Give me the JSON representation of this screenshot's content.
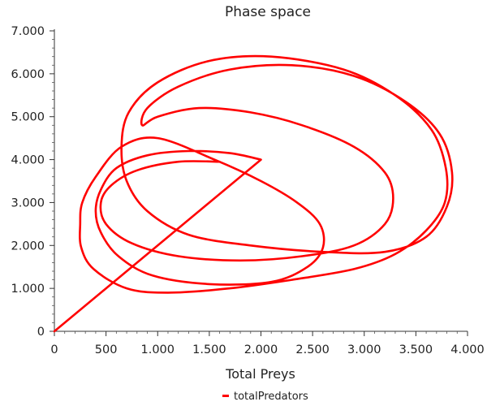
{
  "chart_data": {
    "type": "line",
    "title": "Phase space",
    "xlabel": "Total Preys",
    "ylabel": "",
    "xlim": [
      0,
      4000
    ],
    "ylim": [
      0,
      7000
    ],
    "x_ticks": [
      "0",
      "500",
      "1.000",
      "1.500",
      "2.000",
      "2.500",
      "3.000",
      "3.500",
      "4.000"
    ],
    "y_ticks": [
      "0",
      "1.000",
      "2.000",
      "3.000",
      "4.000",
      "5.000",
      "6.000",
      "7.000"
    ],
    "grid": false,
    "legend_position": "bottom-center",
    "series": [
      {
        "name": "totalPredators",
        "color": "#ff0000",
        "points": [
          [
            0,
            0
          ],
          [
            2000,
            4000
          ],
          [
            1700,
            4150
          ],
          [
            1300,
            4200
          ],
          [
            900,
            4100
          ],
          [
            600,
            3800
          ],
          [
            450,
            3300
          ],
          [
            400,
            2800
          ],
          [
            450,
            2300
          ],
          [
            620,
            1750
          ],
          [
            950,
            1300
          ],
          [
            1500,
            1100
          ],
          [
            2100,
            1150
          ],
          [
            2450,
            1500
          ],
          [
            2600,
            1950
          ],
          [
            2570,
            2500
          ],
          [
            2350,
            3000
          ],
          [
            2000,
            3500
          ],
          [
            1550,
            4000
          ],
          [
            1000,
            4500
          ],
          [
            650,
            4300
          ],
          [
            400,
            3600
          ],
          [
            270,
            3000
          ],
          [
            250,
            2500
          ],
          [
            260,
            1950
          ],
          [
            380,
            1450
          ],
          [
            700,
            1000
          ],
          [
            1100,
            900
          ],
          [
            1700,
            1000
          ],
          [
            2300,
            1200
          ],
          [
            2900,
            1450
          ],
          [
            3300,
            1800
          ],
          [
            3600,
            2350
          ],
          [
            3780,
            3000
          ],
          [
            3790,
            3800
          ],
          [
            3650,
            4700
          ],
          [
            3300,
            5500
          ],
          [
            2800,
            6100
          ],
          [
            2100,
            6400
          ],
          [
            1500,
            6300
          ],
          [
            1000,
            5800
          ],
          [
            720,
            5100
          ],
          [
            650,
            4300
          ],
          [
            700,
            3500
          ],
          [
            900,
            2800
          ],
          [
            1300,
            2250
          ],
          [
            1900,
            2000
          ],
          [
            2600,
            1850
          ],
          [
            3200,
            1850
          ],
          [
            3600,
            2200
          ],
          [
            3800,
            2900
          ],
          [
            3850,
            3700
          ],
          [
            3730,
            4600
          ],
          [
            3400,
            5350
          ],
          [
            2900,
            5950
          ],
          [
            2300,
            6200
          ],
          [
            1700,
            6100
          ],
          [
            1200,
            5700
          ],
          [
            900,
            5200
          ],
          [
            850,
            4800
          ],
          [
            1000,
            5000
          ],
          [
            1400,
            5200
          ],
          [
            1900,
            5100
          ],
          [
            2400,
            4800
          ],
          [
            2900,
            4300
          ],
          [
            3200,
            3700
          ],
          [
            3280,
            3100
          ],
          [
            3200,
            2500
          ],
          [
            2900,
            2000
          ],
          [
            2400,
            1750
          ],
          [
            1800,
            1650
          ],
          [
            1200,
            1750
          ],
          [
            750,
            2050
          ],
          [
            500,
            2500
          ],
          [
            450,
            3000
          ],
          [
            550,
            3400
          ],
          [
            800,
            3750
          ],
          [
            1200,
            3950
          ],
          [
            1600,
            3950
          ]
        ]
      }
    ]
  }
}
